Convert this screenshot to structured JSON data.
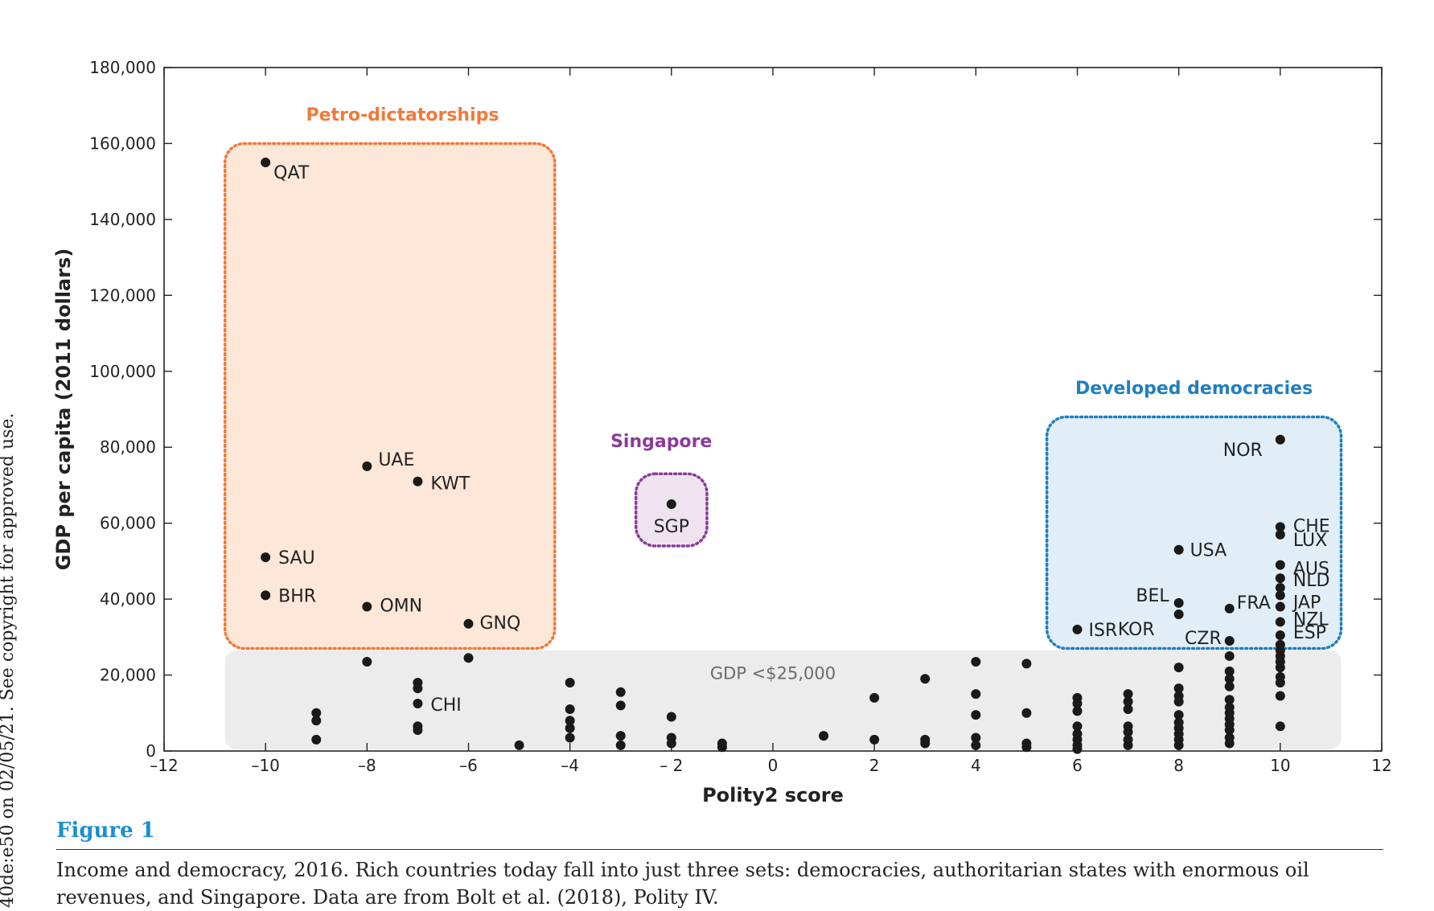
{
  "side_note": "40de:e50 on 02/05/21. See copyright for approved use.",
  "figure": {
    "label": "Figure 1",
    "caption": "Income and democracy, 2016. Rich countries today fall into just three sets: democracies, authoritarian states with enormous oil revenues, and Singapore. Data are from Bolt et al. (2018), Polity IV."
  },
  "colors": {
    "petro": "#f07a3a",
    "petro_fill": "#fde7d8",
    "singapore": "#8a3a9c",
    "singapore_fill": "#efe3f0",
    "democracy": "#1f7fc0",
    "democracy_fill": "#e1eef8",
    "band_fill": "#ececec",
    "point": "#1a1a1a"
  },
  "chart_data": {
    "type": "scatter",
    "xlabel": "Polity2 score",
    "ylabel": "GDP per capita (2011 dollars)",
    "xlim": [
      -12,
      12
    ],
    "ylim": [
      0,
      180000
    ],
    "xticks": [
      -12,
      -10,
      -8,
      -6,
      -4,
      -2,
      0,
      2,
      4,
      6,
      8,
      10,
      12
    ],
    "yticks": [
      0,
      20000,
      40000,
      60000,
      80000,
      100000,
      120000,
      140000,
      160000,
      180000
    ],
    "xtick_labels": [
      "–12",
      "–10",
      "–8",
      "–6",
      "–4",
      "– 2",
      "0",
      "2",
      "4",
      "6",
      "8",
      "10",
      "12"
    ],
    "ytick_labels": [
      "0",
      "20,000",
      "40,000",
      "60,000",
      "80,000",
      "100,000",
      "120,000",
      "140,000",
      "160,000",
      "180,000"
    ],
    "grid": false,
    "groups": [
      {
        "id": "petro",
        "title": "Petro-dictatorships",
        "x_range": [
          -10.8,
          -4.3
        ],
        "y_range": [
          27000,
          160000
        ]
      },
      {
        "id": "singapore",
        "title": "Singapore",
        "x_range": [
          -2.7,
          -1.3
        ],
        "y_range": [
          54000,
          73000
        ]
      },
      {
        "id": "democracy",
        "title": "Developed democracies",
        "x_range": [
          5.4,
          11.2
        ],
        "y_range": [
          27000,
          88000
        ]
      }
    ],
    "band": {
      "label": "GDP <$25,000",
      "x_range": [
        -10.8,
        11.2
      ],
      "y_range": [
        0,
        26500
      ]
    },
    "labeled_points": [
      {
        "label": "QAT",
        "x": -10,
        "y": 155000
      },
      {
        "label": "UAE",
        "x": -8,
        "y": 75000
      },
      {
        "label": "KWT",
        "x": -7,
        "y": 71000
      },
      {
        "label": "SAU",
        "x": -10,
        "y": 51000
      },
      {
        "label": "BHR",
        "x": -10,
        "y": 41000
      },
      {
        "label": "OMN",
        "x": -8,
        "y": 38000
      },
      {
        "label": "GNQ",
        "x": -6,
        "y": 33500
      },
      {
        "label": "SGP",
        "x": -2,
        "y": 65000
      },
      {
        "label": "CHI",
        "x": -7,
        "y": 12500
      },
      {
        "label": "NOR",
        "x": 10,
        "y": 82000
      },
      {
        "label": "CHE",
        "x": 10,
        "y": 59000
      },
      {
        "label": "LUX",
        "x": 10,
        "y": 57000
      },
      {
        "label": "AUS",
        "x": 10,
        "y": 49000
      },
      {
        "label": "NLD",
        "x": 10,
        "y": 45500
      },
      {
        "label": "JAP",
        "x": 10,
        "y": 38000
      },
      {
        "label": "NZL",
        "x": 10,
        "y": 34000
      },
      {
        "label": "ESP",
        "x": 10,
        "y": 30500
      },
      {
        "label": "USA",
        "x": 8,
        "y": 53000
      },
      {
        "label": "BEL",
        "x": 8,
        "y": 39000
      },
      {
        "label": "KOR",
        "x": 8,
        "y": 36000
      },
      {
        "label": "FRA",
        "x": 9,
        "y": 37500
      },
      {
        "label": "CZR",
        "x": 9,
        "y": 29000
      },
      {
        "label": "ISR",
        "x": 6,
        "y": 32000
      }
    ],
    "other_points": [
      [
        -9,
        10000
      ],
      [
        -9,
        8000
      ],
      [
        -9,
        3000
      ],
      [
        -8,
        23500
      ],
      [
        -7,
        18000
      ],
      [
        -7,
        16500
      ],
      [
        -7,
        6500
      ],
      [
        -7,
        5500
      ],
      [
        -6,
        24500
      ],
      [
        -5,
        1500
      ],
      [
        -4,
        18000
      ],
      [
        -4,
        11000
      ],
      [
        -4,
        8000
      ],
      [
        -4,
        6000
      ],
      [
        -4,
        3500
      ],
      [
        -3,
        15500
      ],
      [
        -3,
        12000
      ],
      [
        -3,
        4000
      ],
      [
        -3,
        1500
      ],
      [
        -2,
        9000
      ],
      [
        -2,
        3500
      ],
      [
        -2,
        2000
      ],
      [
        -1,
        2000
      ],
      [
        -1,
        1000
      ],
      [
        1,
        4000
      ],
      [
        2,
        14000
      ],
      [
        2,
        3000
      ],
      [
        3,
        19000
      ],
      [
        3,
        3000
      ],
      [
        3,
        2000
      ],
      [
        4,
        23500
      ],
      [
        4,
        15000
      ],
      [
        4,
        9500
      ],
      [
        4,
        3500
      ],
      [
        4,
        1500
      ],
      [
        5,
        23000
      ],
      [
        5,
        10000
      ],
      [
        5,
        2000
      ],
      [
        5,
        1000
      ],
      [
        6,
        14000
      ],
      [
        6,
        12500
      ],
      [
        6,
        10500
      ],
      [
        6,
        6500
      ],
      [
        6,
        4500
      ],
      [
        6,
        3000
      ],
      [
        6,
        1500
      ],
      [
        6,
        500
      ],
      [
        7,
        15000
      ],
      [
        7,
        13000
      ],
      [
        7,
        11000
      ],
      [
        7,
        6500
      ],
      [
        7,
        5000
      ],
      [
        7,
        3000
      ],
      [
        7,
        1500
      ],
      [
        8,
        22000
      ],
      [
        8,
        16500
      ],
      [
        8,
        14500
      ],
      [
        8,
        13000
      ],
      [
        8,
        9500
      ],
      [
        8,
        7500
      ],
      [
        8,
        6000
      ],
      [
        8,
        4500
      ],
      [
        8,
        3000
      ],
      [
        8,
        1500
      ],
      [
        9,
        25000
      ],
      [
        9,
        21000
      ],
      [
        9,
        19000
      ],
      [
        9,
        17000
      ],
      [
        9,
        13500
      ],
      [
        9,
        11500
      ],
      [
        9,
        10000
      ],
      [
        9,
        8500
      ],
      [
        9,
        7000
      ],
      [
        9,
        5500
      ],
      [
        9,
        3500
      ],
      [
        9,
        2000
      ],
      [
        10,
        43000
      ],
      [
        10,
        41000
      ],
      [
        10,
        28000
      ],
      [
        10,
        26500
      ],
      [
        10,
        25000
      ],
      [
        10,
        23500
      ],
      [
        10,
        22000
      ],
      [
        10,
        19500
      ],
      [
        10,
        18000
      ],
      [
        10,
        14500
      ],
      [
        10,
        6500
      ]
    ]
  }
}
